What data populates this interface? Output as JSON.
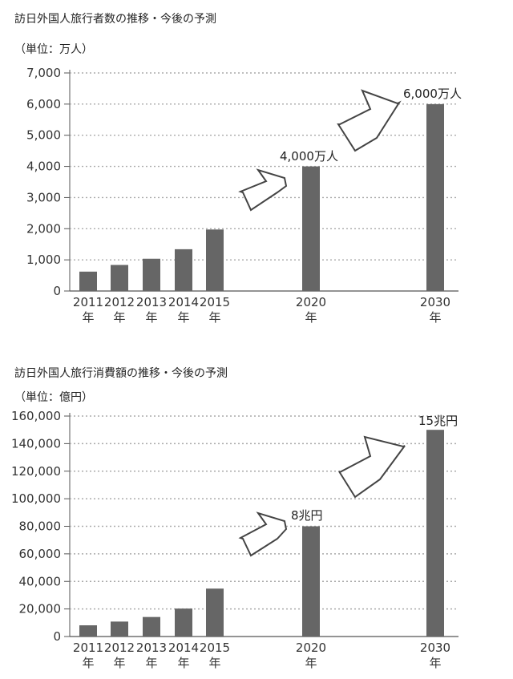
{
  "charts": [
    {
      "title": "訪日外国人旅行者数の推移・今後の予測",
      "unit": "（単位：万人）"
    },
    {
      "title": "訪日外国人旅行消費額の推移・今後の予測",
      "unit": "（単位：億円）"
    }
  ],
  "chart_data": [
    {
      "type": "bar",
      "title": "訪日外国人旅行者数の推移・今後の予測",
      "ylabel": "（単位：万人）",
      "categories": [
        "2011年",
        "2012年",
        "2013年",
        "2014年",
        "2015年",
        "2020年",
        "2030年"
      ],
      "values": [
        622,
        836,
        1036,
        1341,
        1974,
        4000,
        6000
      ],
      "ylim": [
        0,
        7000
      ],
      "yticks": [
        "0",
        "1,000",
        "2,000",
        "3,000",
        "4,000",
        "5,000",
        "6,000",
        "7,000"
      ],
      "grid": true,
      "bar_color": "#666666",
      "annotations": [
        {
          "category": "2020年",
          "text": "4,000万人"
        },
        {
          "category": "2030年",
          "text": "6,000万人"
        }
      ]
    },
    {
      "type": "bar",
      "title": "訪日外国人旅行消費額の推移・今後の予測",
      "ylabel": "（単位：億円）",
      "categories": [
        "2011年",
        "2012年",
        "2013年",
        "2014年",
        "2015年",
        "2020年",
        "2030年"
      ],
      "values": [
        8135,
        10846,
        14167,
        20278,
        34771,
        80000,
        150000
      ],
      "ylim": [
        0,
        160000
      ],
      "yticks": [
        "0",
        "20,000",
        "40,000",
        "60,000",
        "80,000",
        "100,000",
        "120,000",
        "140,000",
        "160,000"
      ],
      "grid": true,
      "bar_color": "#666666",
      "annotations": [
        {
          "category": "2020年",
          "text": "8兆円"
        },
        {
          "category": "2030年",
          "text": "15兆円"
        }
      ]
    }
  ]
}
